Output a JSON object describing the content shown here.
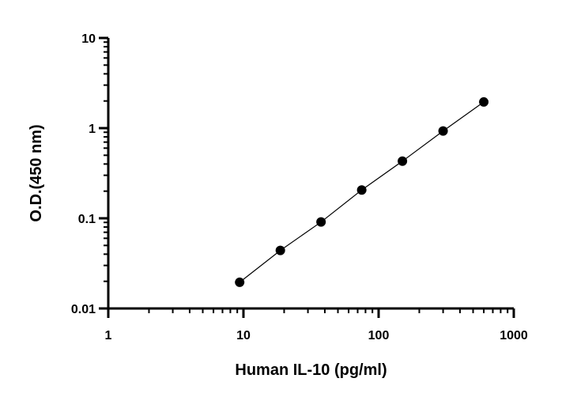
{
  "chart_data": {
    "type": "scatter",
    "title": "",
    "xlabel": "Human IL-10 (pg/ml)",
    "ylabel": "O.D.(450 nm)",
    "x_scale": "log",
    "y_scale": "log",
    "xlim": [
      1,
      1000
    ],
    "ylim": [
      0.01,
      10
    ],
    "x_ticks": [
      1,
      10,
      100,
      1000
    ],
    "x_tick_labels": [
      "1",
      "10",
      "100",
      "1000"
    ],
    "y_ticks": [
      0.01,
      0.1,
      1,
      10
    ],
    "y_tick_labels": [
      "0.01",
      "0.1",
      "1",
      "10"
    ],
    "grid": false,
    "legend": "none",
    "fit_line": true,
    "colors": {
      "marker": "#000000",
      "line": "#000000",
      "axis": "#000000"
    },
    "series": [
      {
        "x": [
          9.375,
          18.75,
          37.5,
          75,
          150,
          300,
          600
        ],
        "y": [
          0.0195,
          0.044,
          0.091,
          0.206,
          0.43,
          0.93,
          1.95
        ]
      }
    ]
  }
}
